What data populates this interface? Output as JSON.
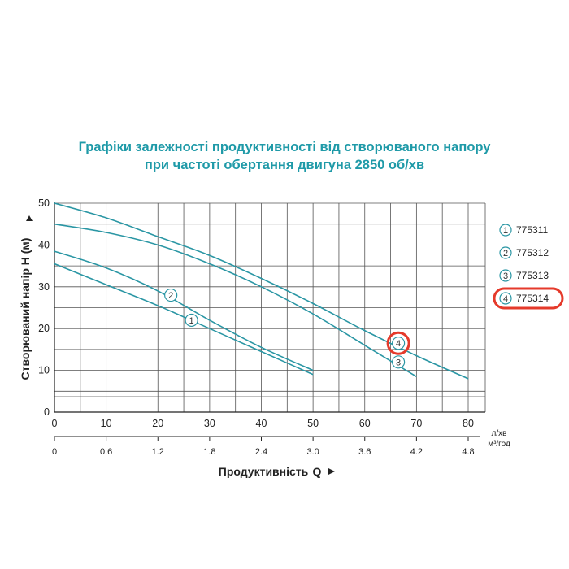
{
  "title_line1": "Графіки залежності продуктивності від створюваного напору",
  "title_line2": "при частоті обертання двигуна 2850 об/хв",
  "chart_data": {
    "type": "line",
    "ylabel": "Створюваний напір H (м)",
    "xlabel": "Продуктивність",
    "xlabel_symbol": "Q",
    "x_unit": "л/хв",
    "x2_unit": "м³/год",
    "xlim": [
      0,
      80
    ],
    "ylim": [
      0,
      50
    ],
    "grid": true,
    "x_ticks": [
      0,
      10,
      20,
      30,
      40,
      50,
      60,
      70,
      80
    ],
    "y_ticks": [
      0,
      10,
      20,
      30,
      40,
      50
    ],
    "x2_ticks": [
      {
        "x": 0,
        "label": "0"
      },
      {
        "x": 10,
        "label": "0.6"
      },
      {
        "x": 20,
        "label": "1.2"
      },
      {
        "x": 30,
        "label": "1.8"
      },
      {
        "x": 40,
        "label": "2.4"
      },
      {
        "x": 50,
        "label": "3.0"
      },
      {
        "x": 60,
        "label": "3.6"
      },
      {
        "x": 70,
        "label": "4.2"
      },
      {
        "x": 80,
        "label": "4.8"
      }
    ],
    "legend_position": "right",
    "series": [
      {
        "name": "775311",
        "marker": "1",
        "marker_at": [
          26.5,
          22
        ],
        "points": [
          [
            0,
            35.5
          ],
          [
            10,
            30.5
          ],
          [
            20,
            25.5
          ],
          [
            30,
            20
          ],
          [
            40,
            14.5
          ],
          [
            50,
            9
          ]
        ]
      },
      {
        "name": "775312",
        "marker": "2",
        "marker_at": [
          22.5,
          28
        ],
        "points": [
          [
            0,
            38.5
          ],
          [
            10,
            34.5
          ],
          [
            20,
            29
          ],
          [
            30,
            22
          ],
          [
            40,
            15.5
          ],
          [
            50,
            10
          ]
        ]
      },
      {
        "name": "775313",
        "marker": "3",
        "marker_at": [
          66.5,
          12
        ],
        "points": [
          [
            0,
            45
          ],
          [
            10,
            43
          ],
          [
            20,
            40
          ],
          [
            30,
            35.5
          ],
          [
            40,
            30
          ],
          [
            50,
            23.5
          ],
          [
            60,
            16
          ],
          [
            70,
            8.5
          ]
        ]
      },
      {
        "name": "775314",
        "marker": "4",
        "marker_at": [
          66.5,
          16.5
        ],
        "highlight": true,
        "points": [
          [
            0,
            50
          ],
          [
            10,
            46.5
          ],
          [
            20,
            42
          ],
          [
            30,
            37.5
          ],
          [
            40,
            32
          ],
          [
            50,
            26
          ],
          [
            60,
            19.5
          ],
          [
            70,
            13.5
          ],
          [
            80,
            8
          ]
        ]
      }
    ]
  },
  "colors": {
    "title": "#1f9aa8",
    "curve": "#2a96a4",
    "grid": "#555555",
    "highlight": "#e53a2b"
  }
}
